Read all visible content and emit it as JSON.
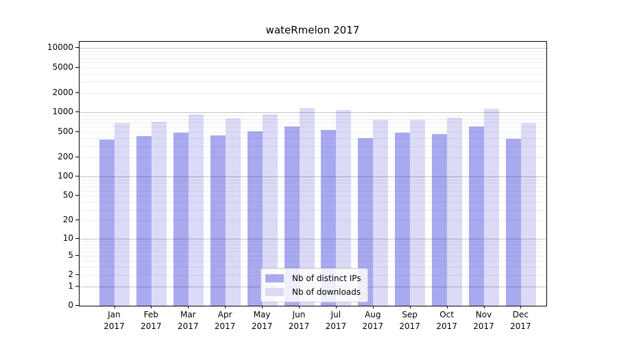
{
  "chart_data": {
    "type": "bar",
    "title": "wateRmelon 2017",
    "categories": [
      "Jan 2017",
      "Feb 2017",
      "Mar 2017",
      "Apr 2017",
      "May 2017",
      "Jun 2017",
      "Jul 2017",
      "Aug 2017",
      "Sep 2017",
      "Oct 2017",
      "Nov 2017",
      "Dec 2017"
    ],
    "series": [
      {
        "name": "Nb of distinct IPs",
        "color": "#a9a9f0",
        "values": [
          380,
          430,
          487,
          438,
          512,
          598,
          530,
          397,
          483,
          460,
          598,
          390
        ]
      },
      {
        "name": "Nb of downloads",
        "color": "#dbdbf7",
        "values": [
          687,
          715,
          936,
          808,
          936,
          1180,
          1090,
          764,
          776,
          827,
          1140,
          676
        ]
      }
    ],
    "xlabel": "",
    "ylabel": "",
    "y_scale": "log1p",
    "ylim": [
      0,
      12500
    ],
    "yticks": [
      0,
      1,
      2,
      5,
      10,
      20,
      50,
      100,
      200,
      500,
      1000,
      2000,
      5000,
      10000
    ],
    "grid": "horizontal major + log minor gridlines drawn over bars",
    "legend_position": "lower center inside plot"
  }
}
